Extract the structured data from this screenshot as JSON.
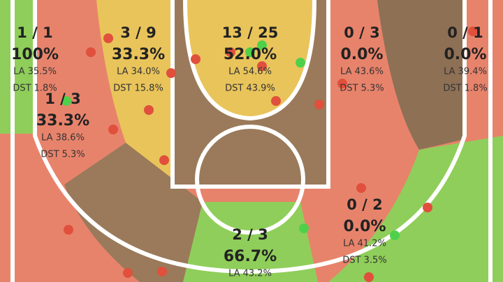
{
  "zones": [
    {
      "ratio": "1 / 1",
      "pct": "100%",
      "la": "LA 35.5%",
      "dst": "DST 1.8%"
    },
    {
      "ratio": "1 / 3",
      "pct": "33.3%",
      "la": "LA 38.6%",
      "dst": "DST 5.3%"
    },
    {
      "ratio": "3 / 9",
      "pct": "33.3%",
      "la": "LA 34.0%",
      "dst": "DST 15.8%"
    },
    {
      "ratio": "13 / 25",
      "pct": "52.0%",
      "la": "LA 54.6%",
      "dst": "DST 43.9%"
    },
    {
      "ratio": "0 / 3",
      "pct": "0.0%",
      "la": "LA 43.6%",
      "dst": "DST 5.3%"
    },
    {
      "ratio": "0 / 1",
      "pct": "0.0%",
      "la": "LA 39.4%",
      "dst": "DST 1.8%"
    },
    {
      "ratio": "2 / 3",
      "pct": "66.7%",
      "la": "LA 43.2%"
    },
    {
      "ratio": "0 / 2",
      "pct": "0.0%",
      "la": "LA 41.2%",
      "dst": "DST 3.5%"
    }
  ]
}
